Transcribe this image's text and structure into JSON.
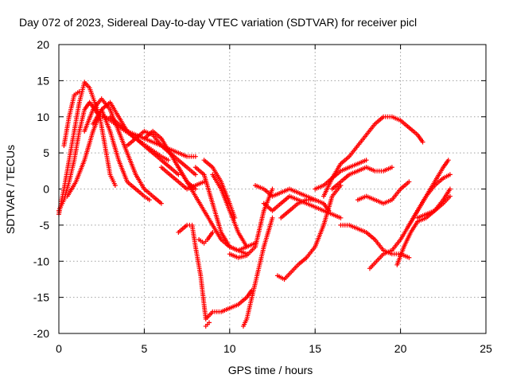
{
  "chart_data": {
    "type": "scatter",
    "title": "Day 072 of 2023, Sidereal Day-to-day VTEC variation (SDTVAR) for receiver picl",
    "xlabel": "GPS time / hours",
    "ylabel": "SDTVAR / TECUs",
    "xlim": [
      0,
      25
    ],
    "ylim": [
      -20,
      20
    ],
    "xticks": [
      "0",
      "5",
      "10",
      "15",
      "20",
      "25"
    ],
    "yticks": [
      "20",
      "15",
      "10",
      "5",
      "0",
      "-5",
      "-10",
      "-15",
      "-20"
    ],
    "grid": true,
    "marker": "plus",
    "color": "#ff0000",
    "series": [
      {
        "x": [
          0.0,
          0.3,
          0.6,
          0.9,
          1.2,
          1.5,
          1.8,
          2.1,
          2.4,
          2.7,
          3.0,
          3.3,
          3.6,
          3.9,
          4.2,
          4.5,
          4.8,
          5.1,
          5.4,
          5.7,
          6.0,
          6.4
        ],
        "y": [
          -3,
          -1.5,
          1,
          4,
          8,
          11,
          12,
          11,
          10,
          10,
          9.5,
          9,
          8.5,
          8,
          7.5,
          7,
          6.5,
          6,
          5.5,
          5,
          4.5,
          4
        ]
      },
      {
        "x": [
          0.0,
          0.3,
          0.6,
          0.9,
          1.2,
          1.5,
          1.8,
          2.1,
          2.4,
          2.7,
          3.0,
          3.3
        ],
        "y": [
          -3.5,
          0,
          4,
          8,
          12,
          14.8,
          14,
          12,
          10,
          6,
          2,
          0.5
        ]
      },
      {
        "x": [
          0.3,
          0.6,
          0.9,
          1.2
        ],
        "y": [
          6,
          10,
          13,
          13.5
        ]
      },
      {
        "x": [
          0.5,
          1.0,
          1.5,
          2.0,
          2.5,
          3.0,
          3.5,
          4.0,
          4.5,
          5.0,
          5.5,
          6.0,
          6.5,
          7.0
        ],
        "y": [
          -1,
          1,
          4,
          8,
          11,
          12,
          10,
          8,
          7,
          6,
          5,
          4,
          3,
          2
        ]
      },
      {
        "x": [
          1.5,
          2.0,
          2.5,
          3.0,
          3.5,
          4.0,
          4.5,
          5.0,
          5.5,
          6.0
        ],
        "y": [
          8,
          11,
          12.5,
          11,
          8,
          5,
          2,
          0,
          -1,
          -2
        ]
      },
      {
        "x": [
          2.0,
          2.5,
          3.0,
          3.5,
          4.0,
          4.5,
          5.0,
          5.3
        ],
        "y": [
          9,
          11,
          8,
          4,
          1,
          0,
          -1,
          -1.5
        ]
      },
      {
        "x": [
          3.0,
          3.5,
          4.0,
          4.5,
          5.0,
          5.5,
          6.0,
          6.5,
          7.0,
          7.5,
          8.0
        ],
        "y": [
          10,
          9,
          8,
          7.5,
          7,
          6.5,
          6,
          5.5,
          5,
          4.5,
          4.5
        ]
      },
      {
        "x": [
          4.0,
          4.5,
          5.0,
          5.5,
          6.0,
          6.5,
          7.0,
          7.5,
          8.0
        ],
        "y": [
          6,
          7,
          8,
          7.5,
          6,
          5,
          4,
          3,
          2
        ]
      },
      {
        "x": [
          5.0,
          5.5,
          6.0,
          6.5,
          7.0,
          7.5,
          8.0
        ],
        "y": [
          7,
          8,
          7,
          5,
          3,
          1,
          0
        ]
      },
      {
        "x": [
          6.0,
          6.5,
          7.0,
          7.5,
          8.0,
          8.5
        ],
        "y": [
          3,
          2,
          1,
          0,
          0.5,
          1
        ]
      },
      {
        "x": [
          7.0,
          7.5,
          8.0,
          8.5,
          9.0,
          9.5,
          10.0,
          10.5,
          11.0
        ],
        "y": [
          3,
          1,
          -1,
          -3,
          -5,
          -7,
          -8,
          -8.5,
          -9
        ]
      },
      {
        "x": [
          8.0,
          8.5,
          9.0,
          9.5,
          10.0,
          10.5,
          11.0,
          11.5
        ],
        "y": [
          3,
          2,
          -2,
          -6,
          -8,
          -8.5,
          -8,
          -7.5
        ]
      },
      {
        "x": [
          8.5,
          9.0,
          9.5,
          10.0,
          10.3
        ],
        "y": [
          4,
          3,
          1,
          -2,
          -4
        ]
      },
      {
        "x": [
          9.0,
          9.5,
          10.0,
          10.5,
          11.0
        ],
        "y": [
          2,
          0,
          -3,
          -6,
          -8
        ]
      },
      {
        "x": [
          10.0,
          10.5,
          11.0,
          11.5,
          12.0,
          12.5
        ],
        "y": [
          -9,
          -9.5,
          -9.2,
          -8,
          -3,
          0
        ]
      },
      {
        "x": [
          7.0,
          7.5,
          7.8,
          8.0,
          8.3,
          8.6,
          9.0,
          9.5,
          10.0,
          10.5,
          11.0,
          11.3
        ],
        "y": [
          -6,
          -5,
          -5,
          -8,
          -12,
          -18,
          -17,
          -17,
          -16.5,
          -16,
          -15,
          -14
        ]
      },
      {
        "x": [
          8.6,
          8.8
        ],
        "y": [
          -19,
          -18.5
        ]
      },
      {
        "x": [
          10.8,
          11.0,
          11.3,
          11.6,
          12.0,
          12.5
        ],
        "y": [
          -19,
          -18,
          -15,
          -12,
          -8,
          -4
        ]
      },
      {
        "x": [
          8.2,
          8.5,
          8.7,
          9.0
        ],
        "y": [
          -7,
          -7.5,
          -7,
          -6
        ]
      },
      {
        "x": [
          11.5,
          12.0,
          12.5,
          13.0,
          13.5,
          14.0,
          14.5,
          15.0
        ],
        "y": [
          0.5,
          0,
          -1,
          -0.5,
          0,
          -0.5,
          -1,
          -1.5
        ]
      },
      {
        "x": [
          12.0,
          12.5,
          13.0,
          13.5,
          14.0,
          14.5,
          15.0,
          15.5,
          16.0,
          16.5
        ],
        "y": [
          -2,
          -3,
          -2,
          -1,
          -1.5,
          -2,
          -2.5,
          -3,
          -3.5,
          -4
        ]
      },
      {
        "x": [
          13.0,
          13.5,
          14.0,
          14.5,
          15.0,
          15.5,
          15.8
        ],
        "y": [
          -4,
          -3,
          -2,
          -1.5,
          -1.5,
          -2,
          -3
        ]
      },
      {
        "x": [
          12.8,
          13.2,
          13.6,
          14.0,
          14.5,
          15.0,
          15.5,
          16.0,
          16.5
        ],
        "y": [
          -12,
          -12.5,
          -11.5,
          -10.5,
          -9.5,
          -8,
          -5,
          -1,
          0.5
        ]
      },
      {
        "x": [
          15.5,
          16.0,
          16.5,
          17.0,
          17.5,
          18.0,
          18.5,
          19.0,
          19.5,
          20.0,
          20.5,
          21.0,
          21.3
        ],
        "y": [
          -1,
          1.5,
          3.5,
          4.5,
          6,
          7.5,
          9,
          10,
          10,
          9.5,
          8.5,
          7.5,
          6.5
        ]
      },
      {
        "x": [
          15.0,
          15.5,
          16.0,
          16.5,
          17.0,
          17.5,
          18.0
        ],
        "y": [
          0,
          0.5,
          1.5,
          2.5,
          3,
          3.5,
          4
        ]
      },
      {
        "x": [
          16.0,
          16.5,
          17.0,
          17.5,
          18.0,
          18.5,
          19.0,
          19.5
        ],
        "y": [
          0,
          1,
          2,
          2.5,
          3,
          2.5,
          2.5,
          3
        ]
      },
      {
        "x": [
          16.5,
          17.0,
          17.5,
          18.0,
          18.5,
          19.0,
          19.5,
          20.0,
          20.5
        ],
        "y": [
          -5,
          -5,
          -5.5,
          -6,
          -7,
          -8.5,
          -9,
          -9,
          -9.5
        ]
      },
      {
        "x": [
          17.5,
          18.0,
          18.5,
          19.0,
          19.5,
          20.0,
          20.5
        ],
        "y": [
          -1.5,
          -1,
          -1.5,
          -2,
          -1.5,
          0,
          1
        ]
      },
      {
        "x": [
          18.2,
          18.6,
          19.0,
          19.5,
          20.0,
          20.5,
          21.0,
          21.5,
          22.0,
          22.5,
          22.8
        ],
        "y": [
          -11,
          -10,
          -9,
          -8.5,
          -7,
          -5,
          -3,
          -1,
          1,
          3,
          4
        ]
      },
      {
        "x": [
          19.8,
          20.2,
          20.6,
          21.0,
          21.5,
          22.0,
          22.5,
          22.9
        ],
        "y": [
          -10.5,
          -8,
          -6,
          -4.5,
          -4,
          -3,
          -1.5,
          0
        ]
      },
      {
        "x": [
          20.5,
          21.0,
          21.5,
          22.0,
          22.5,
          22.9
        ],
        "y": [
          -5,
          -3,
          -1,
          0.5,
          1.5,
          2
        ]
      },
      {
        "x": [
          21.0,
          21.5,
          22.0,
          22.5,
          22.9
        ],
        "y": [
          -4,
          -3.5,
          -3,
          -2,
          -1
        ]
      }
    ]
  }
}
